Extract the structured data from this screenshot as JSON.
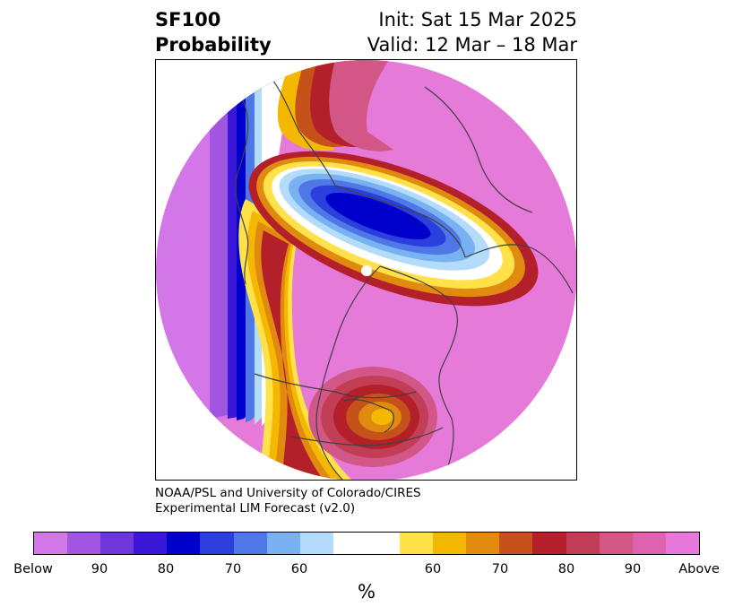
{
  "header": {
    "title_line1": "SF100",
    "title_line2": "Probability",
    "init_text": "Init: Sat 15 Mar 2025",
    "valid_text": "Valid: 12 Mar – 18 Mar"
  },
  "credit": {
    "line1": "NOAA/PSL and University of Colorado/CIRES",
    "line2": "Experimental LIM Forecast (v2.0)"
  },
  "colorbar": {
    "unit": "%",
    "colors": [
      "#d376e8",
      "#a155e0",
      "#6c38d9",
      "#3a17d6",
      "#0000cc",
      "#2a3fdc",
      "#4f78e6",
      "#78b2f2",
      "#b3dcfb",
      "#ffffff",
      "#ffe14a",
      "#f4b800",
      "#e08a0f",
      "#c4521a",
      "#b3202a",
      "#c23d56",
      "#d25786",
      "#dd63b0",
      "#e777d9"
    ],
    "tick_labels": [
      "Below",
      "90",
      "80",
      "70",
      "60",
      "60",
      "70",
      "80",
      "90",
      "Above"
    ]
  },
  "map": {
    "projection": "north-polar-stereographic",
    "background_color": "#e57ad9",
    "features": [
      "below-normal-west-coast",
      "below-normal-arctic",
      "above-normal-great-lakes",
      "above-normal-north-pacific"
    ]
  }
}
